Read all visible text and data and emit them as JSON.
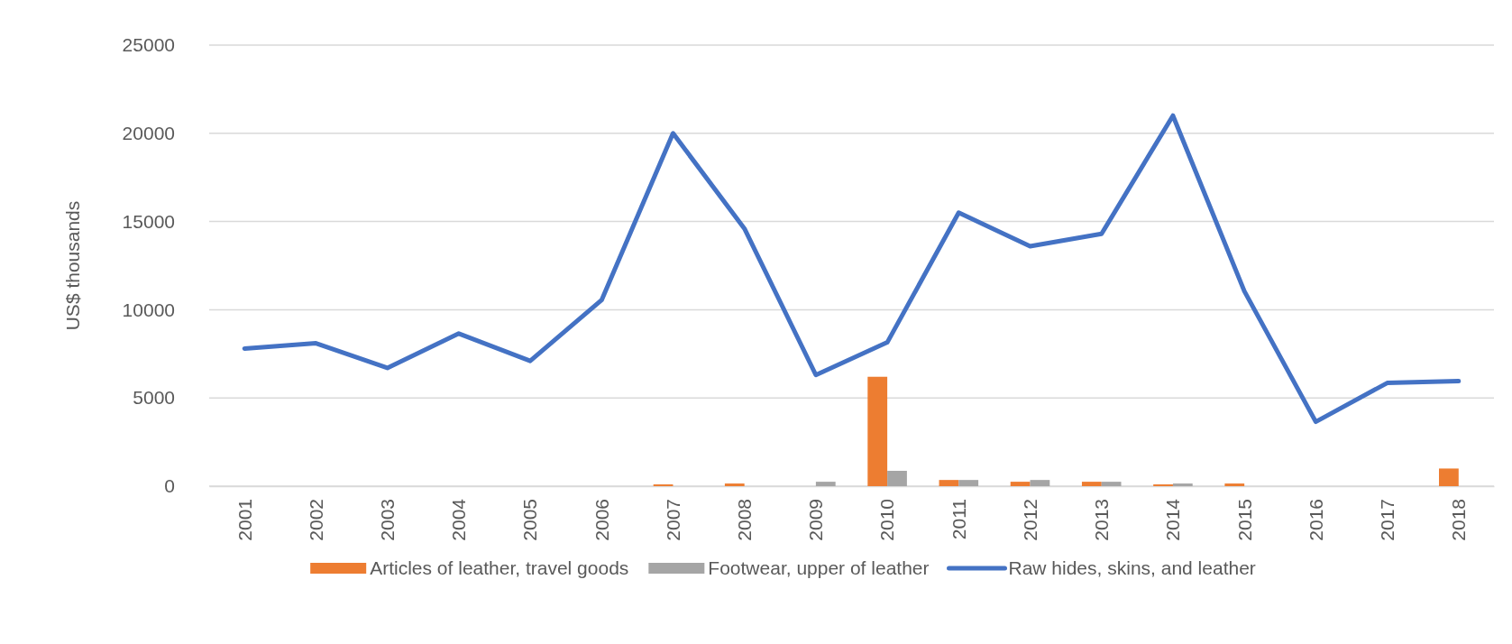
{
  "chart_data": {
    "type": "bar",
    "ylabel": "US$ thousands",
    "categories": [
      "2001",
      "2002",
      "2003",
      "2004",
      "2005",
      "2006",
      "2007",
      "2008",
      "2009",
      "2010",
      "2011",
      "2012",
      "2013",
      "2014",
      "2015",
      "2016",
      "2017",
      "2018"
    ],
    "series": [
      {
        "name": "Articles of leather, travel goods",
        "color": "#ed7d31",
        "values": [
          0,
          0,
          0,
          0,
          0,
          0,
          100,
          150,
          0,
          6200,
          350,
          250,
          250,
          100,
          150,
          0,
          0,
          1000
        ]
      },
      {
        "name": "Footwear, upper of leather",
        "color": "#a5a5a5",
        "values": [
          0,
          0,
          0,
          0,
          0,
          0,
          0,
          0,
          250,
          870,
          350,
          350,
          250,
          150,
          0,
          0,
          0,
          0
        ]
      },
      {
        "name": "Raw hides, skins, and leather",
        "type": "line",
        "color": "#4472c4",
        "values": [
          7800,
          8100,
          6700,
          8650,
          7100,
          10550,
          20000,
          14600,
          6300,
          8150,
          15500,
          13600,
          14300,
          21000,
          11050,
          3650,
          5850,
          5950
        ]
      }
    ],
    "ylim": [
      0,
      25000
    ],
    "yticks": [
      0,
      5000,
      10000,
      15000,
      20000,
      25000
    ],
    "grid": "y",
    "legend": "bottom"
  }
}
